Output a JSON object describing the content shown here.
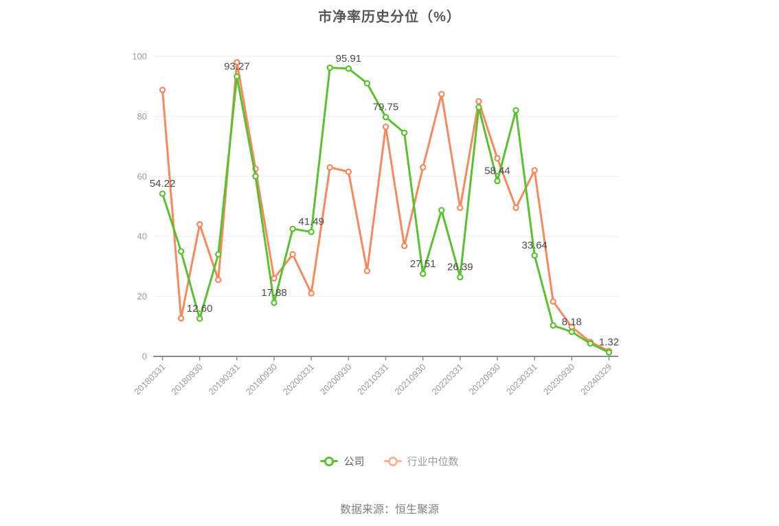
{
  "title": "市净率历史分位（%）",
  "source_text": "数据来源：恒生聚源",
  "legend": {
    "items": [
      {
        "label": "公司",
        "marker_color": "#57c22d",
        "text_color": "#5e5e5e"
      },
      {
        "label": "行业中位数",
        "marker_color": "#ffb09a",
        "text_color": "#9b9b9b"
      }
    ]
  },
  "colors": {
    "company_line": "#57c22d",
    "industry_line": "#f9875c",
    "grid_line": "#e8eef5",
    "axis_line": "#8c8c8c",
    "axis_label": "#999999",
    "value_label": "#4a4a4a",
    "title_text": "#565656",
    "source_text": "#7f7f7f",
    "background": "#ffffff"
  },
  "chart_data": {
    "type": "line",
    "title": "市净率历史分位（%）",
    "ylabel": "",
    "xlabel": "",
    "ylim": [
      0,
      100
    ],
    "y_ticks": [
      0,
      20,
      40,
      60,
      80,
      100
    ],
    "grid": true,
    "legend_position": "bottom",
    "x_tick_labels": [
      "20180331",
      "20180930",
      "20190331",
      "20190930",
      "20200331",
      "20200930",
      "20210331",
      "20210930",
      "20220331",
      "20220930",
      "20230331",
      "20230930",
      "20240329"
    ],
    "points_per_series": 25,
    "tick_every": 2,
    "series": [
      {
        "name": "公司",
        "color": "#57c22d",
        "values": [
          54.22,
          35,
          12.6,
          34,
          93.27,
          60,
          17.88,
          42.5,
          41.49,
          96.2,
          95.91,
          91,
          79.75,
          74.5,
          27.51,
          48.7,
          26.39,
          83,
          58.44,
          82,
          33.64,
          10.3,
          8.18,
          4.3,
          1.32
        ]
      },
      {
        "name": "行业中位数",
        "color": "#f9875c",
        "values": [
          88.8,
          12.7,
          44,
          25.5,
          98,
          62.5,
          26,
          34,
          21,
          63,
          61.5,
          28.5,
          76.5,
          36.8,
          63,
          87.4,
          49.5,
          85,
          66,
          49.5,
          62,
          18.3,
          9.8,
          4.8,
          1.8
        ]
      }
    ],
    "labeled_values": [
      "54.22",
      "12.60",
      "93.27",
      "17.88",
      "41.49",
      "95.91",
      "79.75",
      "27.51",
      "26.39",
      "58.44",
      "33.64",
      "8.18",
      "1.32"
    ],
    "labels_on_series": "公司"
  }
}
